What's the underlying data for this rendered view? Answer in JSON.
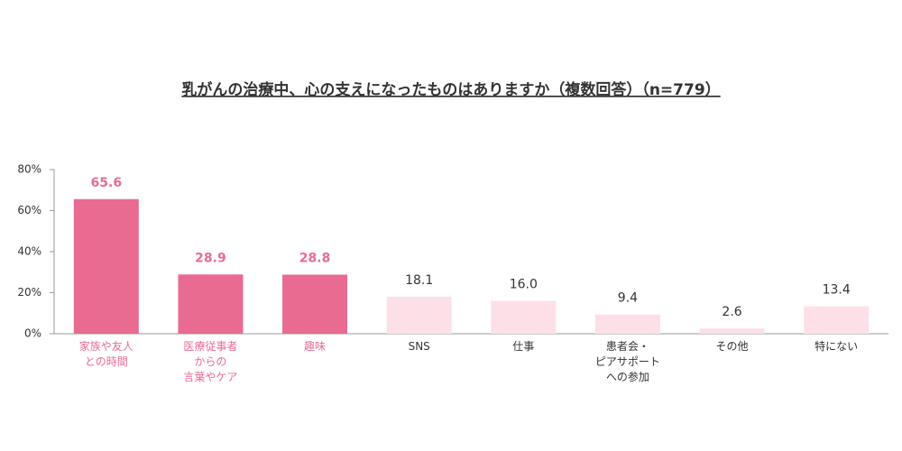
{
  "chart_data": {
    "type": "bar",
    "title": "乳がんの治療中、心の支えになったものはありますか（複数回答）（n=779）",
    "categories": [
      "家族や友人\nとの時間",
      "医療従事者\nからの\n言葉やケア",
      "趣味",
      "SNS",
      "仕事",
      "患者会・\nピアサポート\nへの参加",
      "その他",
      "特にない"
    ],
    "values": [
      65.6,
      28.9,
      28.8,
      18.1,
      16.0,
      9.4,
      2.6,
      13.4
    ],
    "value_labels": [
      "65.6",
      "28.9",
      "28.8",
      "18.1",
      "16.0",
      "9.4",
      "2.6",
      "13.4"
    ],
    "colors": [
      "#e96b92",
      "#e96b92",
      "#e96b92",
      "#fde0e7",
      "#fde0e7",
      "#fde0e7",
      "#fde0e7",
      "#fde0e7"
    ],
    "label_colors": [
      "#e96b92",
      "#e96b92",
      "#e96b92",
      "#333333",
      "#333333",
      "#333333",
      "#333333",
      "#333333"
    ],
    "ylim": [
      0,
      80
    ],
    "yticks": [
      {
        "value": 0,
        "label": "0%"
      },
      {
        "value": 20,
        "label": "20%"
      },
      {
        "value": 40,
        "label": "40%"
      },
      {
        "value": 60,
        "label": "60%"
      },
      {
        "value": 80,
        "label": "80%"
      }
    ]
  }
}
